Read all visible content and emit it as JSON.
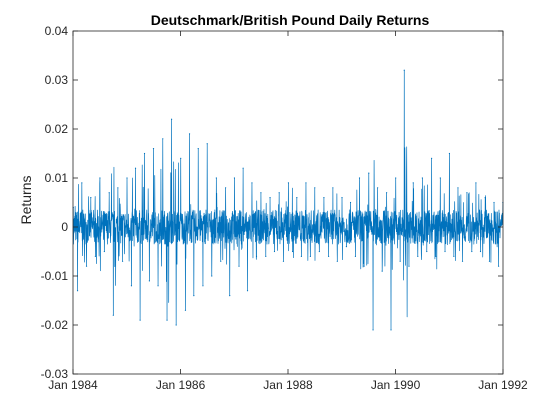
{
  "chart_data": {
    "type": "line",
    "title": "Deutschmark/British Pound Daily Returns",
    "xlabel": "",
    "ylabel": "Returns",
    "xlim": [
      "1984-01-01",
      "1992-01-01"
    ],
    "ylim": [
      -0.03,
      0.04
    ],
    "x_ticks": [
      "1984-01-01",
      "1986-01-01",
      "1988-01-01",
      "1990-01-01",
      "1992-01-01"
    ],
    "x_tick_labels": [
      "Jan 1984",
      "Jan 1986",
      "Jan 1988",
      "Jan 1990",
      "Jan 1992"
    ],
    "y_ticks": [
      -0.03,
      -0.02,
      -0.01,
      0,
      0.01,
      0.02,
      0.03,
      0.04
    ],
    "y_tick_labels": [
      "-0.03",
      "-0.02",
      "-0.01",
      "0",
      "0.01",
      "0.02",
      "0.03",
      "0.04"
    ],
    "grid": false,
    "series": [
      {
        "color": "#0072BD",
        "x": [
          "1984-01-03",
          "1984-02-01",
          "1984-03-01",
          "1984-04-02",
          "1984-05-01",
          "1984-06-01",
          "1984-07-02",
          "1984-08-01",
          "1984-09-03",
          "1984-10-01",
          "1984-11-01",
          "1984-12-03",
          "1985-01-02",
          "1985-02-01",
          "1985-03-01",
          "1985-04-01",
          "1985-05-01",
          "1985-06-03",
          "1985-07-01",
          "1985-08-01",
          "1985-09-02",
          "1985-10-01",
          "1985-11-01",
          "1985-12-02",
          "1986-01-02",
          "1986-02-03",
          "1986-03-03",
          "1986-04-01",
          "1986-05-01",
          "1986-06-02",
          "1986-07-01",
          "1986-08-01",
          "1986-09-01",
          "1986-10-01",
          "1986-11-03",
          "1986-12-01",
          "1987-01-02",
          "1987-02-02",
          "1987-03-02",
          "1987-04-01",
          "1987-05-01",
          "1987-06-01",
          "1987-07-01",
          "1987-08-03",
          "1987-09-01",
          "1987-10-01",
          "1987-11-02",
          "1987-12-01",
          "1988-01-04",
          "1988-02-01",
          "1988-03-01",
          "1988-04-01",
          "1988-05-02",
          "1988-06-01",
          "1988-07-01",
          "1988-08-01",
          "1988-09-01",
          "1988-10-03",
          "1988-11-01",
          "1988-12-01",
          "1989-01-02",
          "1989-02-01",
          "1989-03-01",
          "1989-04-03",
          "1989-05-01",
          "1989-06-01",
          "1989-07-03",
          "1989-08-01",
          "1989-09-01",
          "1989-10-02",
          "1989-11-01",
          "1989-12-01",
          "1990-01-02",
          "1990-02-01",
          "1990-03-01",
          "1990-04-02",
          "1990-05-01",
          "1990-06-01",
          "1990-07-02",
          "1990-08-01",
          "1990-09-03",
          "1990-10-01",
          "1990-11-01",
          "1990-12-03",
          "1991-01-02",
          "1991-02-01",
          "1991-03-01",
          "1991-04-01",
          "1991-05-01",
          "1991-06-03",
          "1991-07-01",
          "1991-08-01",
          "1991-09-02",
          "1991-10-01",
          "1991-11-01",
          "1991-12-02",
          "1991-12-31"
        ],
        "y": [
          0.004,
          -0.013,
          0.009,
          -0.008,
          0.006,
          -0.006,
          0.01,
          -0.005,
          0.007,
          -0.018,
          0.008,
          -0.007,
          0.01,
          -0.012,
          0.012,
          -0.019,
          0.015,
          -0.011,
          0.016,
          -0.012,
          0.018,
          -0.019,
          0.022,
          -0.02,
          0.014,
          -0.017,
          0.019,
          -0.014,
          0.016,
          -0.012,
          0.017,
          -0.01,
          0.01,
          -0.007,
          0.008,
          -0.014,
          0.01,
          -0.008,
          0.012,
          -0.013,
          0.009,
          -0.006,
          0.007,
          -0.006,
          0.006,
          -0.005,
          0.007,
          -0.007,
          0.009,
          -0.005,
          0.006,
          -0.006,
          0.009,
          -0.006,
          0.008,
          -0.005,
          0.006,
          -0.006,
          0.008,
          -0.007,
          0.006,
          -0.004,
          0.005,
          -0.006,
          0.01,
          -0.008,
          0.011,
          -0.021,
          0.008,
          -0.009,
          0.007,
          -0.021,
          0.01,
          -0.007,
          0.032,
          -0.008,
          0.009,
          -0.006,
          0.01,
          -0.005,
          0.014,
          -0.006,
          0.01,
          -0.005,
          0.015,
          -0.006,
          0.008,
          -0.007,
          0.007,
          -0.005,
          0.009,
          -0.005,
          0.006,
          -0.007,
          0.005,
          -0.008,
          0.005
        ]
      }
    ]
  }
}
